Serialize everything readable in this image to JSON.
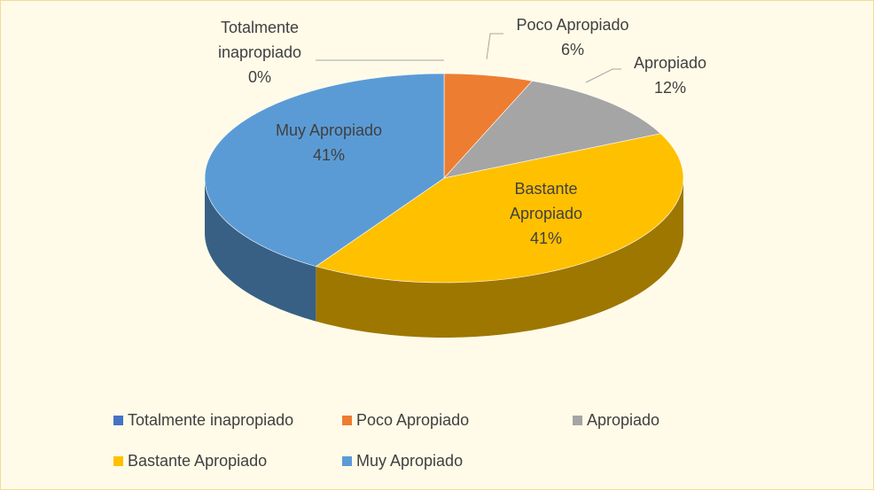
{
  "chart_data": {
    "type": "pie",
    "categories": [
      "Totalmente inapropiado",
      "Poco Apropiado",
      "Apropiado",
      "Bastante Apropiado",
      "Muy Apropiado"
    ],
    "values": [
      0,
      6,
      12,
      41,
      41
    ],
    "value_labels": [
      "0%",
      "6%",
      "12%",
      "41%",
      "41%"
    ],
    "colors": [
      "#4472c4",
      "#ed7d31",
      "#a5a5a5",
      "#ffc000",
      "#5b9bd5"
    ],
    "legend": "bottom"
  }
}
